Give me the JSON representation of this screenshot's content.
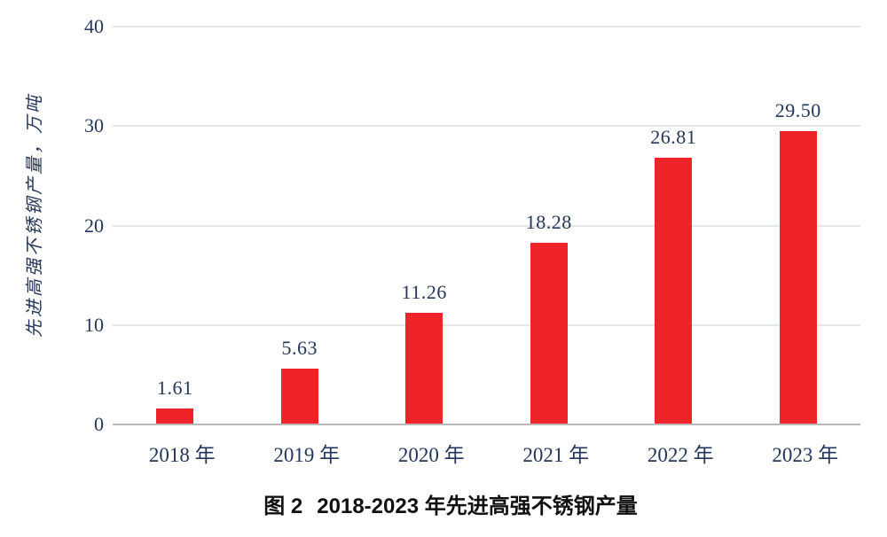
{
  "figure": {
    "caption_label": "图 2",
    "caption_text": "2018-2023 年先进高强不锈钢产量"
  },
  "chart_data": {
    "type": "bar",
    "title": "图 2 2018-2023 年先进高强不锈钢产量",
    "categories": [
      "2018 年",
      "2019 年",
      "2020 年",
      "2021 年",
      "2022 年",
      "2023 年"
    ],
    "values": [
      1.61,
      5.63,
      11.26,
      18.28,
      26.81,
      29.5
    ],
    "value_labels": [
      "1.61",
      "5.63",
      "11.26",
      "18.28",
      "26.81",
      "29.50"
    ],
    "series_name": "先进高强不锈钢产量",
    "xlabel": "",
    "ylabel": "先进高强不锈钢产量，万吨",
    "ylim": [
      0,
      40
    ],
    "yticks": [
      0,
      10,
      20,
      30,
      40
    ],
    "grid": true,
    "legend_position": "none",
    "bar_color": "#ee2428",
    "text_color": "#24365c",
    "grid_color": "#e7e7e7",
    "axis_color": "#b9b9b9"
  }
}
